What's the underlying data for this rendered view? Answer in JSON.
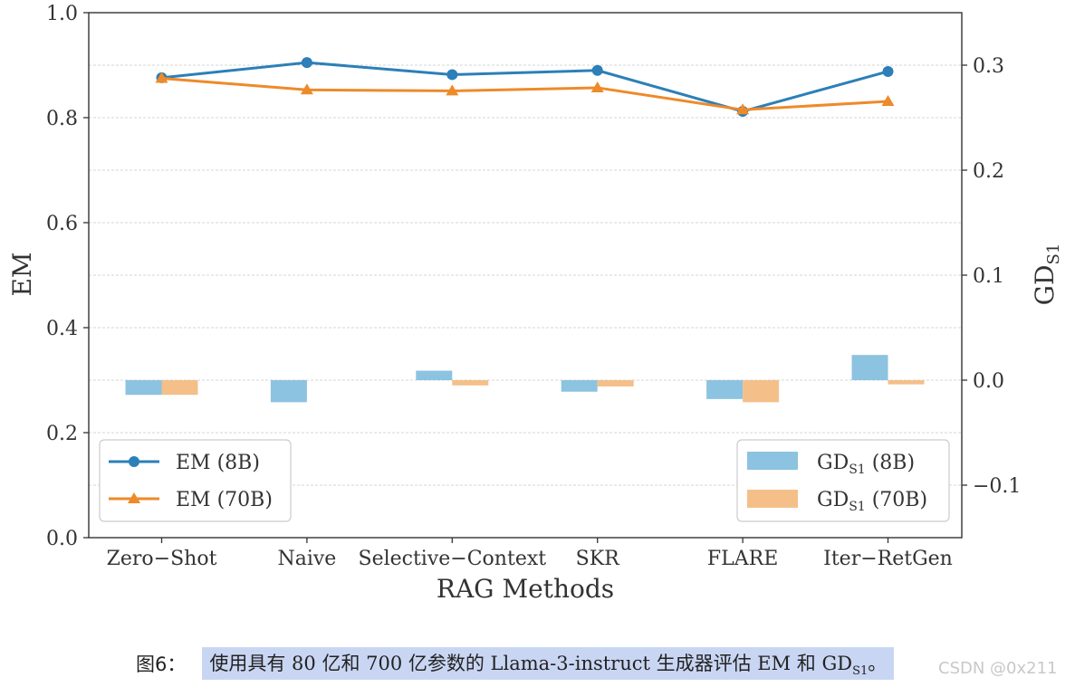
{
  "chart_data": {
    "type": "line+bar",
    "xlabel": "RAG Methods",
    "ylabel_left": "EM",
    "ylabel_right_main": "GD",
    "ylabel_right_sub": "S1",
    "categories": [
      "Zero−Shot",
      "Naive",
      "Selective−Context",
      "SKR",
      "FLARE",
      "Iter−RetGen"
    ],
    "left_axis": {
      "ylim": [
        0.0,
        1.0
      ],
      "ticks": [
        "0.0",
        "0.2",
        "0.4",
        "0.6",
        "0.8",
        "1.0"
      ],
      "tick_values": [
        0.0,
        0.2,
        0.4,
        0.6,
        0.8,
        1.0
      ]
    },
    "right_axis": {
      "ylim": [
        -0.15,
        0.35
      ],
      "ticks": [
        "−0.1",
        "0.0",
        "0.1",
        "0.2",
        "0.3"
      ],
      "tick_values": [
        -0.1,
        0.0,
        0.1,
        0.2,
        0.3
      ]
    },
    "line_series": [
      {
        "name": "EM (8B)",
        "color": "#2c7fb8",
        "marker": "circle",
        "values": [
          0.876,
          0.905,
          0.882,
          0.89,
          0.812,
          0.888
        ]
      },
      {
        "name": "EM (70B)",
        "color": "#ee8a2a",
        "marker": "triangle",
        "values": [
          0.875,
          0.853,
          0.851,
          0.857,
          0.815,
          0.831
        ]
      }
    ],
    "bar_series": [
      {
        "name_main": "GD",
        "name_sub": "S1",
        "name_suffix": " (8B)",
        "color": "#8cc3e0",
        "values": [
          -0.014,
          -0.021,
          0.009,
          -0.011,
          -0.018,
          0.024
        ]
      },
      {
        "name_main": "GD",
        "name_sub": "S1",
        "name_suffix": " (70B)",
        "color": "#f5bf8a",
        "values": [
          -0.014,
          0.0,
          -0.005,
          -0.006,
          -0.021,
          -0.004
        ]
      }
    ],
    "grid": "horizontal",
    "legend_left_placement": "bottom-left",
    "legend_right_placement": "bottom-right"
  },
  "caption": {
    "figure_label": "图6：",
    "text_before": "使用具有 80 亿和 700 亿参数的 Llama-3-instruct 生成器评估 EM 和 GD",
    "text_sub": "S1",
    "text_after": "。"
  },
  "watermark": "CSDN @0x211"
}
